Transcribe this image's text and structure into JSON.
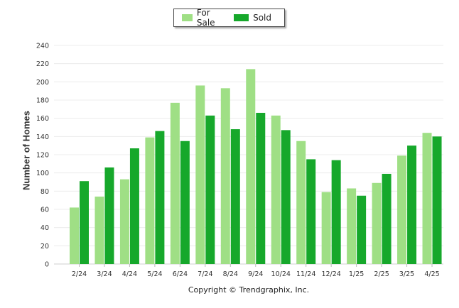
{
  "chart_data": {
    "type": "bar",
    "categories": [
      "2/24",
      "3/24",
      "4/24",
      "5/24",
      "6/24",
      "7/24",
      "8/24",
      "9/24",
      "10/24",
      "11/24",
      "12/24",
      "1/25",
      "2/25",
      "3/25",
      "4/25"
    ],
    "series": [
      {
        "name": "For Sale",
        "color": "#9fdf85",
        "values": [
          62,
          74,
          93,
          139,
          177,
          196,
          193,
          214,
          163,
          135,
          79,
          83,
          89,
          119,
          144
        ]
      },
      {
        "name": "Sold",
        "color": "#16a82b",
        "values": [
          91,
          106,
          127,
          146,
          135,
          163,
          148,
          166,
          147,
          115,
          114,
          75,
          99,
          130,
          140
        ]
      }
    ],
    "title": "",
    "xlabel": "",
    "ylabel": "Number of Homes",
    "ylim": [
      0,
      240
    ],
    "yticks": [
      0,
      20,
      40,
      60,
      80,
      100,
      120,
      140,
      160,
      180,
      200,
      220,
      240
    ],
    "grid": true,
    "legend_position": "top-center"
  },
  "copyright": "Copyright © Trendgraphix, Inc."
}
